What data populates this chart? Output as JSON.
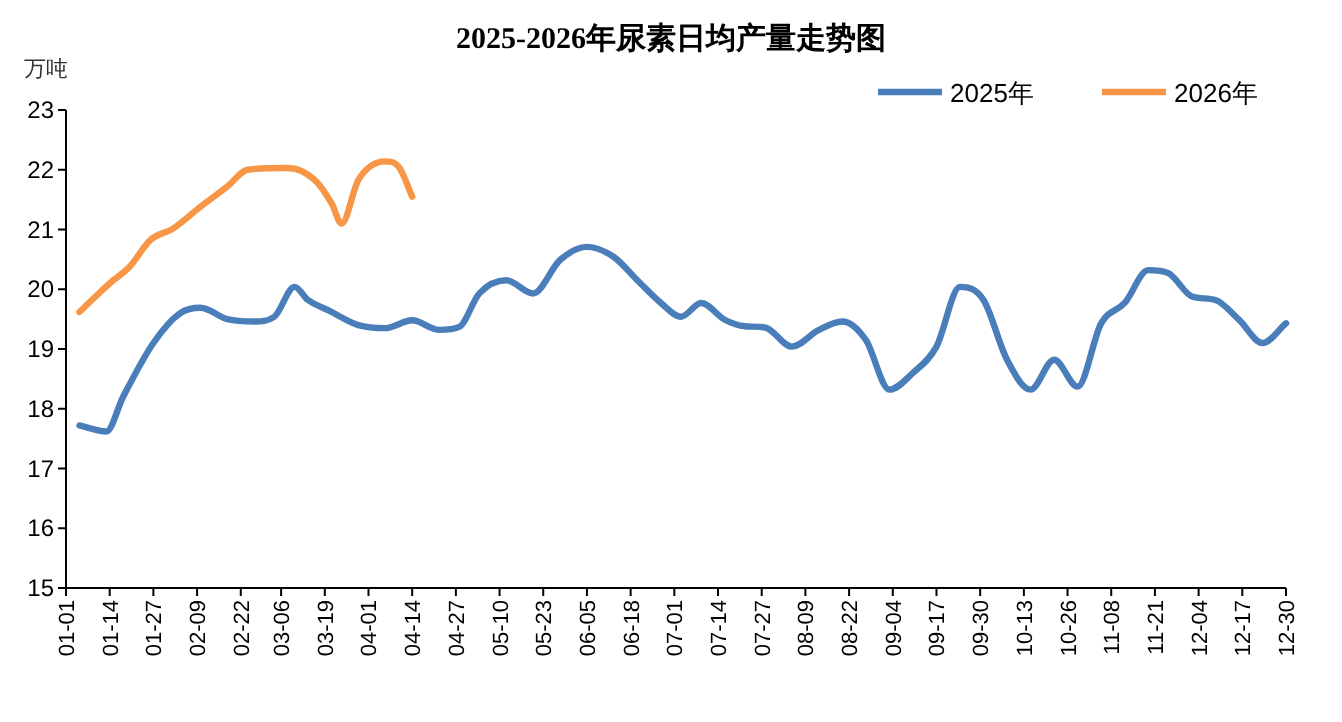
{
  "chart_data": {
    "type": "line",
    "title": "2025-2026年尿素日均产量走势图",
    "ylabel": "万吨",
    "xlim": [
      "--01-01",
      "--12-30"
    ],
    "xticks": [
      {
        "value": "--01-01",
        "label": "01-01"
      },
      {
        "value": "--01-14",
        "label": "01-14"
      },
      {
        "value": "--01-27",
        "label": "01-27"
      },
      {
        "value": "--02-09",
        "label": "02-09"
      },
      {
        "value": "--02-22",
        "label": "02-22"
      },
      {
        "value": "--03-06",
        "label": "03-06"
      },
      {
        "value": "--03-19",
        "label": "03-19"
      },
      {
        "value": "--04-01",
        "label": "04-01"
      },
      {
        "value": "--04-14",
        "label": "04-14"
      },
      {
        "value": "--04-27",
        "label": "04-27"
      },
      {
        "value": "--05-10",
        "label": "05-10"
      },
      {
        "value": "--05-23",
        "label": "05-23"
      },
      {
        "value": "--06-05",
        "label": "06-05"
      },
      {
        "value": "--06-18",
        "label": "06-18"
      },
      {
        "value": "--07-01",
        "label": "07-01"
      },
      {
        "value": "--07-14",
        "label": "07-14"
      },
      {
        "value": "--07-27",
        "label": "07-27"
      },
      {
        "value": "--08-09",
        "label": "08-09"
      },
      {
        "value": "--08-22",
        "label": "08-22"
      },
      {
        "value": "--09-04",
        "label": "09-04"
      },
      {
        "value": "--09-17",
        "label": "09-17"
      },
      {
        "value": "--09-30",
        "label": "09-30"
      },
      {
        "value": "--10-13",
        "label": "10-13"
      },
      {
        "value": "--10-26",
        "label": "10-26"
      },
      {
        "value": "--11-08",
        "label": "11-08"
      },
      {
        "value": "--11-21",
        "label": "11-21"
      },
      {
        "value": "--12-04",
        "label": "12-04"
      },
      {
        "value": "--12-17",
        "label": "12-17"
      },
      {
        "value": "--12-30",
        "label": "12-30"
      }
    ],
    "ylim": [
      15,
      23
    ],
    "yticks": [
      15,
      16,
      17,
      18,
      19,
      20,
      21,
      22,
      23
    ],
    "grid": false,
    "legend": "top right",
    "marker": "none",
    "line_style": "solid",
    "series": [
      {
        "name": "2025年",
        "color": "#4a7ebb",
        "x": [
          "--01-05",
          "--01-13",
          "--01-18",
          "--01-27",
          "--02-04",
          "--02-10",
          "--02-18",
          "--02-26",
          "--03-04",
          "--03-10",
          "--03-14",
          "--03-20",
          "--03-29",
          "--04-06",
          "--04-14",
          "--04-22",
          "--04-28",
          "--05-04",
          "--05-12",
          "--05-20",
          "--05-28",
          "--06-05",
          "--06-13",
          "--06-20",
          "--06-27",
          "--07-03",
          "--07-09",
          "--07-16",
          "--07-22",
          "--07-28",
          "--08-05",
          "--08-13",
          "--08-20",
          "--08-27",
          "--09-03",
          "--09-10",
          "--09-17",
          "--09-24",
          "--10-01",
          "--10-08",
          "--10-15",
          "--10-22",
          "--10-29",
          "--11-05",
          "--11-12",
          "--11-19",
          "--11-25",
          "--12-02",
          "--12-09",
          "--12-16",
          "--12-23",
          "--12-30"
        ],
        "values": [
          17.72,
          17.62,
          18.2,
          19.1,
          19.6,
          19.69,
          19.5,
          19.46,
          19.54,
          20.04,
          19.82,
          19.65,
          19.4,
          19.35,
          19.48,
          19.32,
          19.37,
          19.93,
          20.15,
          19.93,
          20.49,
          20.71,
          20.54,
          20.15,
          19.77,
          19.54,
          19.77,
          19.49,
          19.38,
          19.36,
          19.04,
          19.32,
          19.46,
          19.15,
          18.32,
          18.6,
          19.04,
          20.04,
          19.82,
          18.82,
          18.32,
          18.82,
          18.37,
          19.43,
          19.77,
          20.32,
          20.27,
          19.88,
          19.82,
          19.49,
          19.1,
          19.43
        ]
      },
      {
        "name": "2026年",
        "color": "#f79646",
        "x": [
          "--01-05",
          "--01-14",
          "--01-20",
          "--01-26",
          "--02-02",
          "--02-10",
          "--02-18",
          "--02-24",
          "--03-08",
          "--03-16",
          "--03-21",
          "--03-24",
          "--03-29",
          "--04-06",
          "--04-10",
          "--04-14"
        ],
        "values": [
          19.62,
          20.1,
          20.38,
          20.82,
          21.02,
          21.38,
          21.72,
          22.0,
          22.03,
          21.83,
          21.44,
          21.1,
          21.83,
          22.14,
          22.05,
          21.55
        ]
      }
    ]
  }
}
